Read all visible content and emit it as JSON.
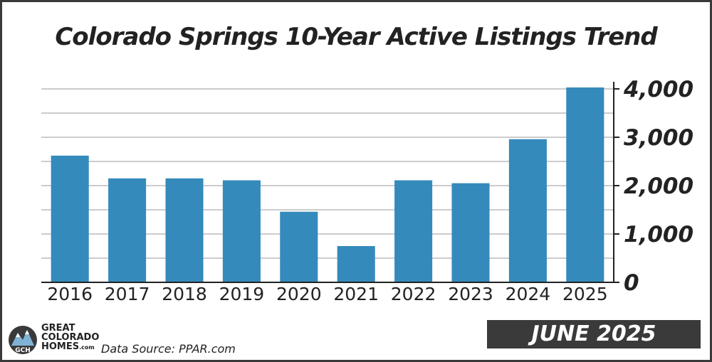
{
  "chart_data": {
    "type": "bar",
    "title": "Colorado Springs 10-Year Active Listings Trend",
    "categories": [
      "2016",
      "2017",
      "2018",
      "2019",
      "2020",
      "2021",
      "2022",
      "2023",
      "2024",
      "2025"
    ],
    "values": [
      2620,
      2150,
      2150,
      2110,
      1460,
      750,
      2110,
      2050,
      2960,
      4030
    ],
    "ylim": [
      0,
      4000
    ],
    "yticks": [
      0,
      1000,
      2000,
      3000,
      4000
    ],
    "ytick_labels": [
      "0",
      "1,000",
      "2,000",
      "3,000",
      "4,000"
    ],
    "grid": true,
    "y_axis_side": "right",
    "bar_color": "#348abb"
  },
  "footer": {
    "logo_lines": [
      "GREAT",
      "COLORADO",
      "HOMES"
    ],
    "logo_suffix": ".com",
    "logo_badge": "GCH",
    "source": "Data Source: PPAR.com",
    "date_label": "JUNE 2025"
  }
}
